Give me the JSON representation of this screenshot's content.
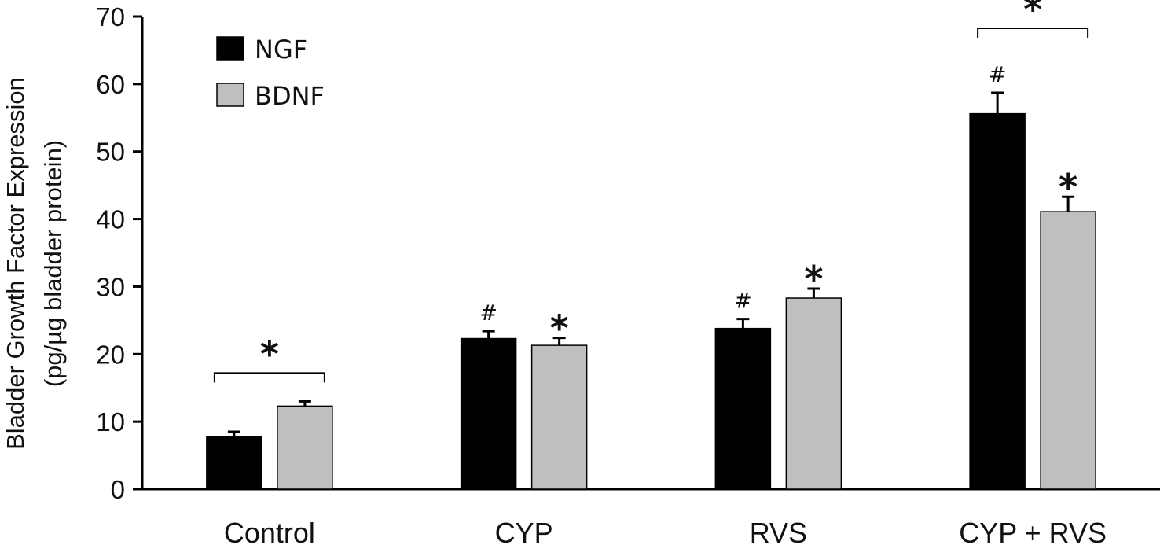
{
  "chart_data": {
    "type": "bar",
    "title": "",
    "xlabel": "",
    "ylabel": [
      "Bladder Growth Factor Expression",
      "(pg/µg bladder protein)"
    ],
    "categories": [
      "Control",
      "CYP",
      "RVS",
      "CYP + RVS"
    ],
    "ylim": [
      0,
      70
    ],
    "yticks": [
      0,
      10,
      20,
      30,
      40,
      50,
      60,
      70
    ],
    "legend_position": "top-left",
    "series": [
      {
        "name": "NGF",
        "color": "#000000",
        "values": [
          7.8,
          22.3,
          23.8,
          55.6
        ],
        "errors": [
          0.7,
          1.1,
          1.4,
          3.1
        ],
        "annotations": [
          "",
          "#",
          "#",
          "#"
        ]
      },
      {
        "name": "BDNF",
        "color": "#bfbfbf",
        "values": [
          12.3,
          21.3,
          28.3,
          41.1
        ],
        "errors": [
          0.7,
          1.1,
          1.4,
          2.2
        ],
        "annotations": [
          "",
          "*",
          "*",
          "*"
        ]
      }
    ],
    "brackets": [
      {
        "category": "Control",
        "label": "*"
      },
      {
        "category": "CYP + RVS",
        "label": "*"
      }
    ]
  }
}
